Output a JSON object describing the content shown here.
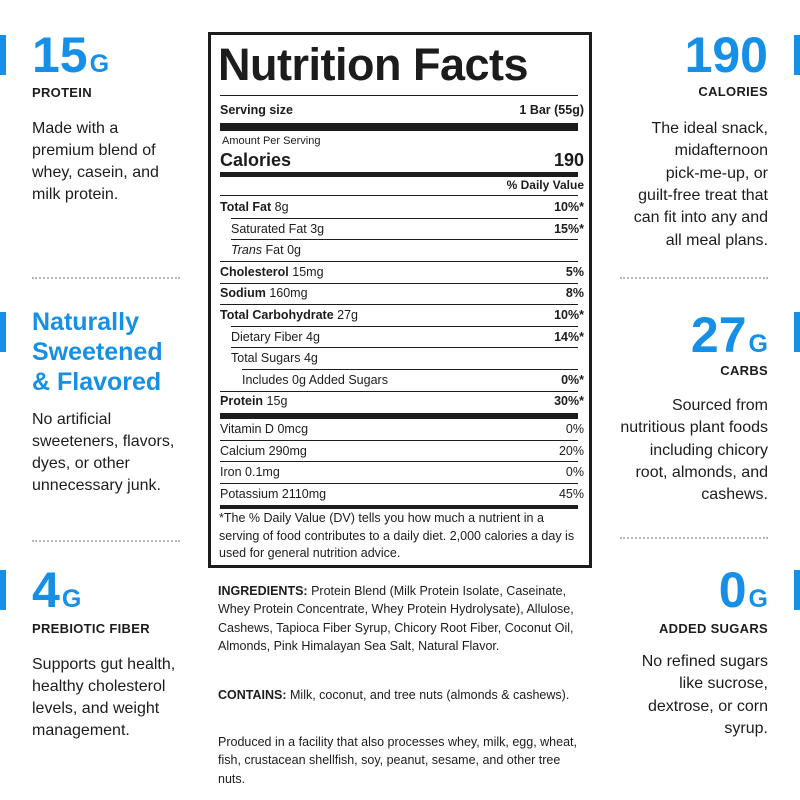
{
  "left_features": [
    {
      "amount": "15",
      "unit": "G",
      "label": "PROTEIN",
      "description": [
        "Made with a",
        "premium blend of",
        "whey, casein, and",
        "milk protein."
      ]
    },
    {
      "heading": [
        "Naturally",
        "Sweetened",
        "& Flavored"
      ],
      "description": [
        "No artificial",
        "sweeteners, flavors,",
        "dyes, or other",
        "unnecessary junk."
      ]
    },
    {
      "amount": "4",
      "unit": "G",
      "label": "PREBIOTIC FIBER",
      "description": [
        "Supports gut health,",
        "healthy cholesterol",
        "levels, and weight",
        "management."
      ]
    }
  ],
  "right_features": [
    {
      "amount": "190",
      "label": "CALORIES",
      "description": [
        "The ideal snack,",
        "midafternoon",
        "pick-me-up, or",
        "guilt-free treat that",
        "can fit into any and",
        "all meal plans."
      ]
    },
    {
      "amount": "27",
      "unit": "G",
      "label": "CARBS",
      "description": [
        "Sourced from",
        "nutritious plant foods",
        "including chicory",
        "root, almonds, and",
        "cashews."
      ]
    },
    {
      "amount": "0",
      "unit": "G",
      "label": "ADDED SUGARS",
      "description": [
        "No refined sugars",
        "like sucrose,",
        "dextrose, or corn",
        "syrup."
      ]
    }
  ],
  "nutrition_facts": {
    "title": "Nutrition Facts",
    "serving_size_label": "Serving size",
    "serving_size": "1 Bar (55g)",
    "amount_per_serving": "Amount Per Serving",
    "calories_label": "Calories",
    "calories": "190",
    "daily_value_header": "% Daily Value",
    "nutrients": [
      {
        "name": "Total Fat",
        "amount": "8g",
        "dv": "10%*",
        "bold": true,
        "level": 0
      },
      {
        "name": "Saturated Fat",
        "amount": "3g",
        "dv": "15%*",
        "bold": false,
        "level": 1
      },
      {
        "name_italic": "Trans",
        "name": "Fat",
        "amount": "0g",
        "bold": false,
        "level": 1
      },
      {
        "name": "Cholesterol",
        "amount": "15mg",
        "dv": "5%",
        "bold": true,
        "level": 0
      },
      {
        "name": "Sodium",
        "amount": "160mg",
        "dv": "8%",
        "bold": true,
        "level": 0
      },
      {
        "name": "Total Carbohydrate",
        "amount": "27g",
        "dv": "10%*",
        "bold": true,
        "level": 0
      },
      {
        "name": "Dietary Fiber",
        "amount": "4g",
        "dv": "14%*",
        "bold": false,
        "level": 1
      },
      {
        "name": "Total Sugars",
        "amount": "4g",
        "bold": false,
        "level": 1
      },
      {
        "name": "Includes 0g Added Sugars",
        "dv": "0%*",
        "bold": false,
        "level": 2
      },
      {
        "name": "Protein",
        "amount": "15g",
        "dv": "30%*",
        "bold": true,
        "level": 0
      }
    ],
    "vitamins": [
      {
        "name": "Vitamin D",
        "amount": "0mcg",
        "dv": "0%"
      },
      {
        "name": "Calcium",
        "amount": "290mg",
        "dv": "20%"
      },
      {
        "name": "Iron",
        "amount": "0.1mg",
        "dv": "0%"
      },
      {
        "name": "Potassium",
        "amount": "2110mg",
        "dv": "45%"
      }
    ],
    "footnote": "*The % Daily Value (DV) tells you how much a nutrient in a serving of food contributes to a daily diet. 2,000 calories a day is used for general nutrition advice."
  },
  "ingredients": [
    {
      "heading": "INGREDIENTS:",
      "text": "Protein Blend (Milk Protein Isolate, Caseinate, Whey Protein Concentrate, Whey Protein Hydrolysate), Allulose, Cashews, Tapioca Fiber Syrup, Chicory Root Fiber, Coconut Oil, Almonds, Pink Himalayan Sea Salt, Natural Flavor."
    },
    {
      "heading": "CONTAINS:",
      "text": "Milk, coconut, and tree nuts (almonds & cashews)."
    },
    {
      "text": "Produced in a facility that also processes whey, milk, egg, wheat, fish, crustacean shellfish, soy, peanut, sesame, and other tree nuts."
    }
  ]
}
